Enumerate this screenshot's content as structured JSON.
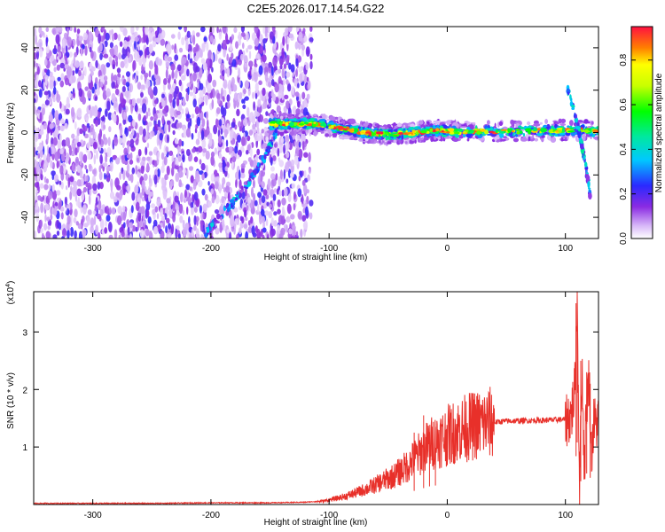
{
  "title": "C2E5.2026.017.14.54.G22",
  "chart_data": [
    {
      "type": "heatmap",
      "xlabel": "Height of straight line (km)",
      "ylabel": "Frequency (Hz)",
      "xlim": [
        -350,
        128
      ],
      "ylim": [
        -50,
        50
      ],
      "xticks": [
        -300,
        -200,
        -100,
        0,
        100
      ],
      "yticks": [
        -40,
        -20,
        0,
        20,
        40
      ],
      "colorbar": {
        "label": "Normalized spectral amplitude",
        "range": [
          0,
          0.95
        ],
        "ticks": [
          0.0,
          0.2,
          0.4,
          0.6,
          0.8
        ]
      },
      "features": {
        "noise_region_x": [
          -350,
          -115
        ],
        "main_ridge": [
          {
            "x": -150,
            "y": 4
          },
          {
            "x": -130,
            "y": 4
          },
          {
            "x": -110,
            "y": 4
          },
          {
            "x": -90,
            "y": 2
          },
          {
            "x": -70,
            "y": 0
          },
          {
            "x": -50,
            "y": -1
          },
          {
            "x": -30,
            "y": 0
          },
          {
            "x": -10,
            "y": 1
          },
          {
            "x": 10,
            "y": 0.5
          },
          {
            "x": 50,
            "y": 0.5
          },
          {
            "x": 90,
            "y": 1
          },
          {
            "x": 128,
            "y": 1
          }
        ],
        "diagonal_streak": [
          {
            "x": -205,
            "y": -48
          },
          {
            "x": -185,
            "y": -35
          },
          {
            "x": -170,
            "y": -25
          },
          {
            "x": -155,
            "y": -12
          },
          {
            "x": -145,
            "y": 0
          }
        ],
        "right_streak": [
          {
            "x": 102,
            "y": 20
          },
          {
            "x": 107,
            "y": 10
          },
          {
            "x": 112,
            "y": 0
          },
          {
            "x": 117,
            "y": -15
          },
          {
            "x": 121,
            "y": -30
          }
        ]
      }
    },
    {
      "type": "line",
      "xlabel": "Height of straight line (km)",
      "ylabel": "SNR (10 * v/v)",
      "y_multiplier": "(x10",
      "y_multiplier_exp": "4",
      "y_multiplier_close": ")",
      "xlim": [
        -350,
        128
      ],
      "ylim": [
        0,
        3.7
      ],
      "xticks": [
        -300,
        -200,
        -100,
        0,
        100
      ],
      "yticks": [
        1,
        2,
        3
      ],
      "series": [
        {
          "color": "#e8302a",
          "points": [
            [
              -350,
              0.02
            ],
            [
              -300,
              0.02
            ],
            [
              -250,
              0.02
            ],
            [
              -200,
              0.03
            ],
            [
              -150,
              0.03
            ],
            [
              -120,
              0.04
            ],
            [
              -105,
              0.06
            ],
            [
              -95,
              0.1
            ],
            [
              -85,
              0.15
            ],
            [
              -75,
              0.22
            ],
            [
              -65,
              0.3
            ],
            [
              -55,
              0.4
            ],
            [
              -45,
              0.5
            ],
            [
              -35,
              0.65
            ],
            [
              -25,
              0.85
            ],
            [
              -20,
              0.95
            ],
            [
              -15,
              1.05
            ],
            [
              -5,
              1.15
            ],
            [
              5,
              1.25
            ],
            [
              15,
              1.33
            ],
            [
              25,
              1.38
            ],
            [
              35,
              1.42
            ],
            [
              50,
              1.45
            ],
            [
              70,
              1.46
            ],
            [
              90,
              1.47
            ],
            [
              100,
              1.48
            ],
            [
              105,
              1.55
            ],
            [
              108,
              2.0
            ],
            [
              110,
              3.6
            ],
            [
              112,
              0.3
            ],
            [
              114,
              2.4
            ],
            [
              116,
              0.6
            ],
            [
              118,
              1.8
            ],
            [
              120,
              2.2
            ],
            [
              122,
              0.9
            ],
            [
              124,
              1.4
            ],
            [
              128,
              1.45
            ]
          ],
          "spikes": [
            {
              "x": -28,
              "y": 1.25
            },
            {
              "x": -20,
              "y": 1.55
            },
            {
              "x": -15,
              "y": 1.2
            },
            {
              "x": -10,
              "y": 1.35
            },
            {
              "x": 109,
              "y": 3.5
            },
            {
              "x": 110,
              "y": 3.7
            },
            {
              "x": 113,
              "y": 2.5
            },
            {
              "x": 118,
              "y": 2.3
            },
            {
              "x": 121,
              "y": 2.1
            }
          ]
        }
      ]
    }
  ]
}
